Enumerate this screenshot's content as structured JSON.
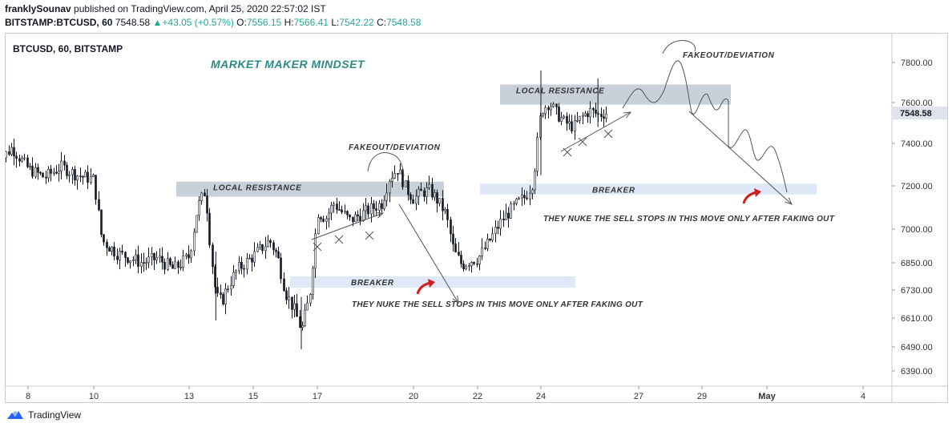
{
  "header": {
    "author": "franklySounav",
    "published_text": "published on TradingView.com, April 25, 2020 22:57:02 IST",
    "symbol": "BITSTAMP:BTCUSD, 60",
    "last_price": "7548.58",
    "change_arrow": "▲",
    "change": "+43.05 (+0.57%)",
    "o_label": "O:",
    "o_value": "7556.15",
    "h_label": "H:",
    "h_value": "7566.41",
    "l_label": "L:",
    "l_value": "7542.22",
    "c_label": "C:",
    "c_value": "7548.58"
  },
  "chart_data": {
    "type": "candlestick",
    "symbol_label": "BTCUSD, 60, BITSTAMP",
    "title": "MARKET MAKER MINDSET",
    "y_ticks": [
      7800.0,
      7600.0,
      7400.0,
      7200.0,
      7000.0,
      6850.0,
      6730.0,
      6610.0,
      6490.0,
      6390.0
    ],
    "y_tick_labels": [
      "7800.00",
      "7600.00",
      "7400.00",
      "7200.00",
      "7000.00",
      "6850.00",
      "6730.00",
      "6610.00",
      "6490.00",
      "6390.00"
    ],
    "x_tick_labels": [
      "8",
      "10",
      "13",
      "15",
      "17",
      "20",
      "22",
      "24",
      "27",
      "29",
      "May",
      "4"
    ],
    "x_tick_dates": [
      "2020-04-08",
      "2020-04-10",
      "2020-04-13",
      "2020-04-15",
      "2020-04-17",
      "2020-04-20",
      "2020-04-22",
      "2020-04-24",
      "2020-04-27",
      "2020-04-29",
      "2020-05-01",
      "2020-05-04"
    ],
    "last_price_label": "7548.58",
    "price_path": [
      [
        "2020-04-07",
        7300
      ],
      [
        "2020-04-07T12",
        7380
      ],
      [
        "2020-04-08",
        7280
      ],
      [
        "2020-04-08T12",
        7240
      ],
      [
        "2020-04-09",
        7290
      ],
      [
        "2020-04-09T12",
        7250
      ],
      [
        "2020-04-10",
        7230
      ],
      [
        "2020-04-10T06",
        6950
      ],
      [
        "2020-04-10T18",
        6890
      ],
      [
        "2020-04-11",
        6880
      ],
      [
        "2020-04-11T12",
        6850
      ],
      [
        "2020-04-12",
        6870
      ],
      [
        "2020-04-12T12",
        6820
      ],
      [
        "2020-04-13",
        6880
      ],
      [
        "2020-04-13T06",
        7100
      ],
      [
        "2020-04-13T12",
        7180
      ],
      [
        "2020-04-13T16",
        6900
      ],
      [
        "2020-04-13T20",
        6700
      ],
      [
        "2020-04-14",
        6680
      ],
      [
        "2020-04-14T06",
        6760
      ],
      [
        "2020-04-14T12",
        6820
      ],
      [
        "2020-04-15",
        6880
      ],
      [
        "2020-04-15T12",
        6950
      ],
      [
        "2020-04-15T18",
        6880
      ],
      [
        "2020-04-16",
        6720
      ],
      [
        "2020-04-16T06",
        6650
      ],
      [
        "2020-04-16T12",
        6560
      ],
      [
        "2020-04-16T18",
        6700
      ],
      [
        "2020-04-17",
        7080
      ],
      [
        "2020-04-17T06",
        7050
      ],
      [
        "2020-04-17T12",
        7120
      ],
      [
        "2020-04-18",
        7040
      ],
      [
        "2020-04-18T12",
        7080
      ],
      [
        "2020-04-19",
        7120
      ],
      [
        "2020-04-19T06",
        7240
      ],
      [
        "2020-04-19T12",
        7280
      ],
      [
        "2020-04-19T18",
        7190
      ],
      [
        "2020-04-20",
        7140
      ],
      [
        "2020-04-20T06",
        7170
      ],
      [
        "2020-04-20T12",
        7180
      ],
      [
        "2020-04-20T18",
        7130
      ],
      [
        "2020-04-21",
        7070
      ],
      [
        "2020-04-21T06",
        6900
      ],
      [
        "2020-04-21T12",
        6840
      ],
      [
        "2020-04-21T18",
        6860
      ],
      [
        "2020-04-22",
        6870
      ],
      [
        "2020-04-22T06",
        6920
      ],
      [
        "2020-04-22T12",
        6980
      ],
      [
        "2020-04-22T18",
        7040
      ],
      [
        "2020-04-23",
        7080
      ],
      [
        "2020-04-23T06",
        7120
      ],
      [
        "2020-04-23T12",
        7150
      ],
      [
        "2020-04-23T18",
        7220
      ],
      [
        "2020-04-24",
        7560
      ],
      [
        "2020-04-24T06",
        7600
      ],
      [
        "2020-04-24T12",
        7540
      ],
      [
        "2020-04-24T18",
        7500
      ],
      [
        "2020-04-25",
        7480
      ],
      [
        "2020-04-25T06",
        7530
      ],
      [
        "2020-04-25T12",
        7560
      ],
      [
        "2020-04-25T18",
        7540
      ],
      [
        "2020-04-26",
        7550
      ]
    ],
    "annotations": {
      "left_resistance_label": "LOCAL RESISTANCE",
      "right_resistance_label": "LOCAL RESISTANCE",
      "left_fakeout_label": "FAKEOUT/DEVIATION",
      "right_fakeout_label": "FAKEOUT/DEVIATION",
      "left_breaker_label": "BREAKER",
      "right_breaker_label": "BREAKER",
      "left_note": "THEY NUKE THE SELL STOPS IN THIS MOVE ONLY AFTER FAKING OUT",
      "right_note": "THEY NUKE THE SELL STOPS IN THIS MOVE ONLY AFTER FAKING OUT",
      "left_resistance_zone": [
        7150,
        7220
      ],
      "right_resistance_zone": [
        7590,
        7690
      ],
      "left_breaker_zone": [
        6740,
        6790
      ],
      "right_breaker_zone": [
        7160,
        7210
      ]
    },
    "colors": {
      "candle": "#131722",
      "resistance_zone": "#c8d0da",
      "breaker_zone": "#dfe8f7",
      "title": "#2b8b85",
      "drawing": "#555555",
      "red_arrow": "#cc1f1f"
    },
    "grid": false
  },
  "footer": {
    "brand": "TradingView",
    "logo_icon": "tradingview-logo-icon"
  }
}
